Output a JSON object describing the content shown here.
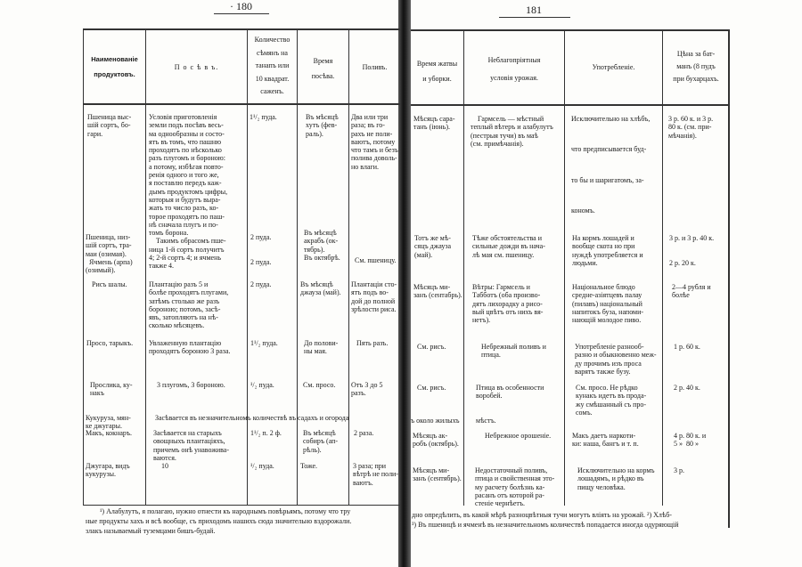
{
  "left_page": {
    "page_number": "· 180",
    "headers": [
      "Наименованіе\nпродуктовъ.",
      "П о с ѣ в ъ.",
      "Количество\nсѣмянъ на\nтанапъ или\n10 квадрат.\nсаженъ.",
      "Время\nпосѣва.",
      "Поливъ."
    ],
    "rows": [
      [
        "Пшеница выс-\nшій сортъ, бо-\nгари.",
        "Условія приготовленія\nземли подъ посѣвъ весь-\nма однообразны и состо-\nятъ въ томъ, что пашню\nпроходятъ по нѣсколько\nразъ плугомъ и бороною:\nа потому, избѣгая повто-\nренія одного и того же,\nя поставлю передъ каж-\nдымъ продуктомъ цифры,\nкоторыя и будутъ выра-\nжать то число разъ, ко-\nторое проходятъ по паш-\nнѣ сначала плугъ и по-\nтомъ борона.\n    Такимъ обрасомъ пше-\nница 1-й сортъ получитъ\n4; 2-й сортъ 4; и ячмень\nтакже 4.",
        "1¹/₂ пуда.",
        "Въ мѣсяцѣ\nхутъ (фев-\nраль).",
        "Два или три\nраза; въ го-\nрахъ не поли-\nваютъ, потому\nчто тамъ и безъ\nполива доволь-\nно влаги."
      ],
      [
        "Пшеница, низ-\nшій сортъ, тра-\nмаи (озимая).\n  Ячмень (арпа)\n(озимый).",
        "",
        "2 пуда.\n\n\n2 пуда.",
        "Въ мѣсяцѣ\nакрабъ (ок-\nтябрь).\nВъ октябрѣ.",
        "См. пшеницу."
      ],
      [
        "Рисъ шалы.",
        "Плантацію разъ 5 и\nболѣе проходятъ плугами,\nзатѣмъ столько же разъ\nбороною; потомъ, засѣ-\nявъ, затопляютъ на нѣ-\nсколько мѣсяцевъ.",
        "2 пуда.",
        "Въ мѣсяцѣ\nджауза (май).",
        "Плантаціи сто-\nятъ подъ во-\nдой до полной\nзрѣлости риса."
      ],
      [
        "Просо, тарыкъ.",
        "Увлаженную плантацію\nпроходятъ бороною 3 раза.",
        "1¹/₂ пуда.",
        "До полови-\nны мая.",
        "Пять разъ."
      ],
      [
        "Прослика, ку-\nнакъ",
        "3 плугомъ, 3 бороною.",
        "¹/₂ пуда.",
        "См. просо.",
        "Отъ 3 до 5\nразъ."
      ],
      [
        "Кукуруза, мян-\nке джугары.",
        "Засѣвается въ незначительномъ количествѣ въ садахъ и огорода",
        "",
        "",
        ""
      ],
      [
        "Макъ, кокнаръ.",
        "Засѣвается на старыхъ\nовощныхъ плантаціяхъ,\nпричемъ онѣ унавожива-\nваются.",
        "1¹/₂ п. 2 ф.",
        "Въ мѣсяцѣ\nсобиръ (ап-\nрѣль).",
        "2 раза."
      ],
      [
        "Джугара, видъ\nкукурузы.",
        "10",
        "¹/₂ пуда.",
        "Тоже.",
        "3 раза; при\nвѣтрѣ не поли-\nваютъ."
      ]
    ],
    "footnotes": [
      "¹) Алабулутъ, я полагаю, нужно отнести къ народнымъ повѣрьямъ, потому что тру",
      "ные продукты хахъ и всѣ вообще, съ приходомъ нашихъ сюда значительно вздорожали.",
      "злакъ называемый туземцами бишъ-будай."
    ]
  },
  "right_page": {
    "page_number": "181",
    "headers": [
      "Время жатвы\nи уборки.",
      "Неблагопріятныя\nусловія урожая.",
      "Употребленіе.",
      "Цѣна за бат-\nманъ (8 пудъ\nпри бухарцахъ."
    ],
    "rows": [
      [
        "Мѣсяцъ сара-\nтанъ (іюнь).",
        "    Гармсель — мѣстный\nтеплый вѣтеръ и алабулутъ\n(пестрыя тучи) въ маѣ\n(см. примѣчанія).",
        "Исключительно на хлѣбъ,\n\n\n\nчто предписывается буд-\n\n\n\nто бы и шаригатомъ, за-\n\n\n\nкономъ.",
        "3 р. 60 к. и 3 р.\n80 к. (см. при-\nмѣчанія)."
      ],
      [
        "Тотъ же мѣ-\nсяцъ джауза\n(май).",
        "Тѣже обстоятельства и\nсильные дожди въ нача-\nлѣ мая см. пшеницу.",
        "На кормъ лошадей и\nвообще скота но при\nнуждѣ употребляется и\nлюдьми.",
        "3 р. и 3 р. 40 к.\n\n\n2 р. 20 к."
      ],
      [
        "Мѣсяцъ ми-\nзанъ (сентабрь).",
        "Вѣтры: Гармсель и\nТабботъ (оба произво-\nдятъ лихорадку а рисо-\nвый цвѣтъ отъ нихъ вя-\nнетъ).",
        "Національное блюдо\nсредне-азіятцевъ палау\n(пилавъ) національный\nнапитокъ буза, напоми-\nнающій молодое пиво.",
        "2—4 рубля и\nболѣе"
      ],
      [
        "См. рисъ.",
        "Небрежный поливъ и\nптица.",
        "Употребленіе разнооб-\nразно и обыкновенно меж-\nду прочимъ изъ проса\nварятъ также бузу.",
        "1 р. 60 к."
      ],
      [
        "См. рисъ.",
        "Птица въ особенности\nворобей.",
        "См. просо. Не рѣдко\nкунакъ идетъ въ прода-\nжу смѣшанный съ про-\nсомъ.",
        "2 р. 40 к."
      ],
      [
        "ъ около жилыхъ",
        "мѣстъ.",
        "",
        ""
      ],
      [
        "Мѣсяцъ ак-\nробъ (октябрь).",
        "Небрежное орошеніе.",
        "Макъ даетъ наркоти-\nки: наша, бангъ и т. п.",
        "4 р. 80 к. и\n5 »  80 »"
      ],
      [
        "Мѣсяцъ ми-\nзанъ (сентябрь).",
        "Недостаточный поливъ,\nптица и свойственная это-\nму расчету болѣзнь ка-\nрасанъ отъ которой ра-\nстеніе чернѣетъ.",
        "Исключительно на кормъ\nлошадямъ, и рѣдко въ\nпищу человѣка.",
        "3 р."
      ]
    ],
    "footnotes": [
      "дно опредѣлить, въ какой мѣрѣ разноцвѣтныя тучи могутъ вліять на урожай. ²) Хлѣб-",
      "³) Въ пшеницѣ и ячменѣ въ незначительномъ количествѣ попадается иногда одуряющій"
    ]
  }
}
